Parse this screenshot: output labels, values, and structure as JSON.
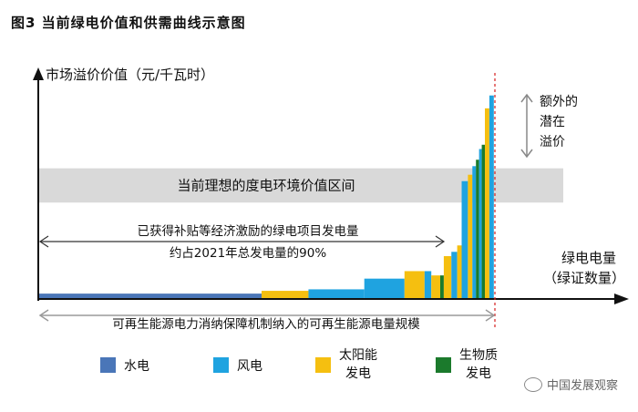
{
  "figure_title": "图3  当前绿电价值和供需曲线示意图",
  "watermark": "中国发展观察",
  "chart_data": {
    "type": "bar",
    "title": "当前绿电价值和供需曲线示意图",
    "ylabel": "市场溢价价值（元/千瓦时）",
    "xlabel": "绿电电量（绿证数量）",
    "xlim": [
      0,
      100
    ],
    "ylim": [
      0,
      100
    ],
    "band_label": "当前理想的度电环境价值区间",
    "band_range": [
      45,
      61
    ],
    "annotation_subsidy": [
      "已获得补贴等经济激励的绿电项目发电量",
      "约占2021年总发电量的90%"
    ],
    "annotation_subsidy_range": [
      0,
      90
    ],
    "annotation_bottom": "可再生能源电力消纳保障机制纳入的可再生能源电量规模",
    "annotation_bottom_range": [
      0,
      95
    ],
    "annotation_premium": "额外的潜在溢价",
    "legend": [
      {
        "name": "水电",
        "color": "#4a76b8"
      },
      {
        "name": "风电",
        "color": "#1fa3e0"
      },
      {
        "name": "太阳能发电",
        "color": "#f5bf10"
      },
      {
        "name": "生物质发电",
        "color": "#1b7a2c"
      }
    ],
    "bars": [
      {
        "type": "水电",
        "x0": 0,
        "x1": 50,
        "value": 2.5
      },
      {
        "type": "太阳能发电",
        "x0": 50,
        "x1": 60.5,
        "value": 3.8
      },
      {
        "type": "风电",
        "x0": 60.5,
        "x1": 73,
        "value": 4.5
      },
      {
        "type": "风电",
        "x0": 73,
        "x1": 82,
        "value": 9.5
      },
      {
        "type": "太阳能发电",
        "x0": 82,
        "x1": 86.5,
        "value": 13
      },
      {
        "type": "风电",
        "x0": 86.5,
        "x1": 88,
        "value": 13
      },
      {
        "type": "太阳能发电",
        "x0": 88,
        "x1": 90,
        "value": 11
      },
      {
        "type": "生物质发电",
        "x0": 90,
        "x1": 90.8,
        "value": 11
      },
      {
        "type": "太阳能发电",
        "x0": 90.8,
        "x1": 92.5,
        "value": 20
      },
      {
        "type": "风电",
        "x0": 92.5,
        "x1": 93.8,
        "value": 22
      },
      {
        "type": "太阳能发电",
        "x0": 93.8,
        "x1": 94.8,
        "value": 25
      },
      {
        "type": "风电",
        "x0": 94.8,
        "x1": 96.2,
        "value": 55
      },
      {
        "type": "太阳能发电",
        "x0": 96.2,
        "x1": 97.2,
        "value": 58
      },
      {
        "type": "风电",
        "x0": 97.2,
        "x1": 98,
        "value": 62
      },
      {
        "type": "生物质发电",
        "x0": 98,
        "x1": 98.7,
        "value": 65
      },
      {
        "type": "风电",
        "x0": 98.7,
        "x1": 99.3,
        "value": 70
      },
      {
        "type": "生物质发电",
        "x0": 99.3,
        "x1": 100,
        "value": 72
      },
      {
        "type": "太阳能发电",
        "x0": 100,
        "x1": 101,
        "value": 89
      },
      {
        "type": "风电",
        "x0": 101,
        "x1": 102,
        "value": 95
      }
    ]
  }
}
